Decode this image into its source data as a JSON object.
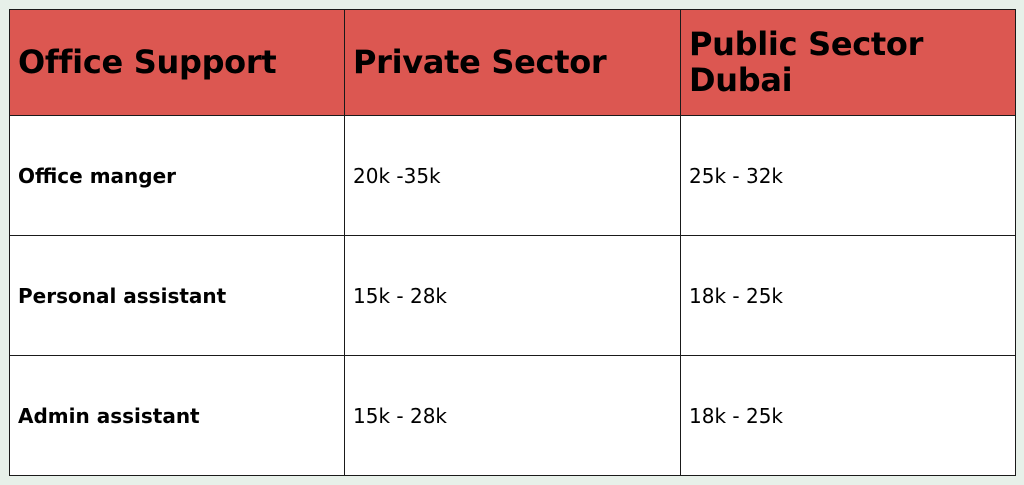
{
  "table": {
    "headers": [
      "Office Support",
      "Private Sector",
      "Public Sector Dubai"
    ],
    "rows": [
      {
        "role": "Office manger",
        "private": "20k -35k",
        "public": "25k - 32k"
      },
      {
        "role": "Personal assistant",
        "private": "15k - 28k",
        "public": "18k - 25k"
      },
      {
        "role": "Admin assistant",
        "private": "15k - 28k",
        "public": "18k - 25k"
      }
    ]
  },
  "colors": {
    "header_bg": "#dc5751",
    "page_bg": "#e7f0e9",
    "border": "#1a1a1a"
  }
}
